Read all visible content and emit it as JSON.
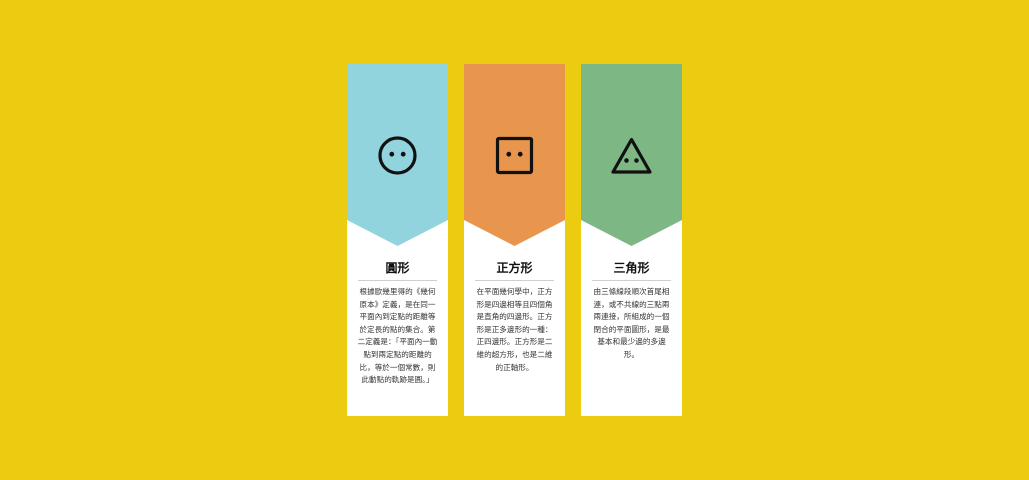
{
  "background_color": "#ECCC10",
  "cards": [
    {
      "title": "圓形",
      "description": "根據歐幾里得的《幾何原本》定義，是在同一平面內到定點的距離等於定長的點的集合。第二定義是：「平面內一動點到兩定點的距離的比，等於一個常數，則此動點的軌跡是圓。」",
      "color": "#92D4DD",
      "icon": "circle-face-icon"
    },
    {
      "title": "正方形",
      "description": "在平面幾何學中，正方形是四邊相等且四個角是直角的四邊形。正方形是正多邊形的一種：正四邊形。正方形是二維的超方形，也是二維的正軸形。",
      "color": "#E8964E",
      "icon": "square-face-icon"
    },
    {
      "title": "三角形",
      "description": "由三條線段順次首尾相連，或不共線的三點兩兩連接，所組成的一個閉合的平面圖形，是最基本和最少邊的多邊形。",
      "color": "#7CB784",
      "icon": "triangle-face-icon"
    }
  ]
}
